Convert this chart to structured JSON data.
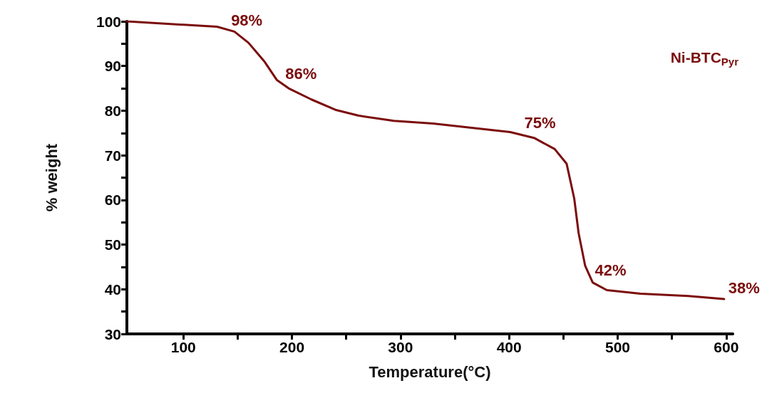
{
  "chart_data": {
    "type": "line",
    "xlabel": "Temperature(°C)",
    "ylabel": "% weight",
    "legend": false,
    "grid": false,
    "marker": "none",
    "line_style": "solid",
    "xlim": [
      48,
      606
    ],
    "ylim": [
      30,
      100
    ],
    "xticks": [
      100,
      {
        "value": 150,
        "label": null
      },
      200,
      {
        "value": 250,
        "label": null
      },
      300,
      {
        "value": 350,
        "label": null
      },
      400,
      {
        "value": 450,
        "label": null
      },
      500,
      {
        "value": 550,
        "label": null
      },
      600
    ],
    "yticks": [
      30,
      {
        "value": 35,
        "label": null
      },
      40,
      {
        "value": 45,
        "label": null
      },
      50,
      {
        "value": 55,
        "label": null
      },
      60,
      {
        "value": 65,
        "label": null
      },
      70,
      {
        "value": 75,
        "label": null
      },
      80,
      {
        "value": 85,
        "label": null
      },
      90,
      {
        "value": 95,
        "label": null
      },
      100
    ],
    "series": [
      {
        "name": "Ni-BTC$_{Pyr}$",
        "color": "#7b0c0c",
        "x": [
          48,
          131,
          147,
          160,
          175,
          186,
          197,
          218,
          240,
          261,
          294,
          330,
          401,
          423,
          442,
          453,
          460,
          464,
          470,
          477,
          490,
          521,
          565,
          598
        ],
        "values": [
          100,
          98.8,
          97.7,
          95.2,
          90.9,
          86.9,
          85,
          82.5,
          80.2,
          78.9,
          77.7,
          77.1,
          75.2,
          73.9,
          71.4,
          68.1,
          60.3,
          52.6,
          45.3,
          41.5,
          39.8,
          39,
          38.5,
          37.8
        ]
      }
    ],
    "annotations": [
      {
        "text": "98%",
        "x": 140,
        "y": 98
      },
      {
        "text": "86%",
        "x": 190,
        "y": 86
      },
      {
        "text": "75%",
        "x": 410,
        "y": 75
      },
      {
        "text": "42%",
        "x": 475,
        "y": 42
      },
      {
        "text": "38%",
        "x": 598,
        "y": 38
      }
    ]
  }
}
